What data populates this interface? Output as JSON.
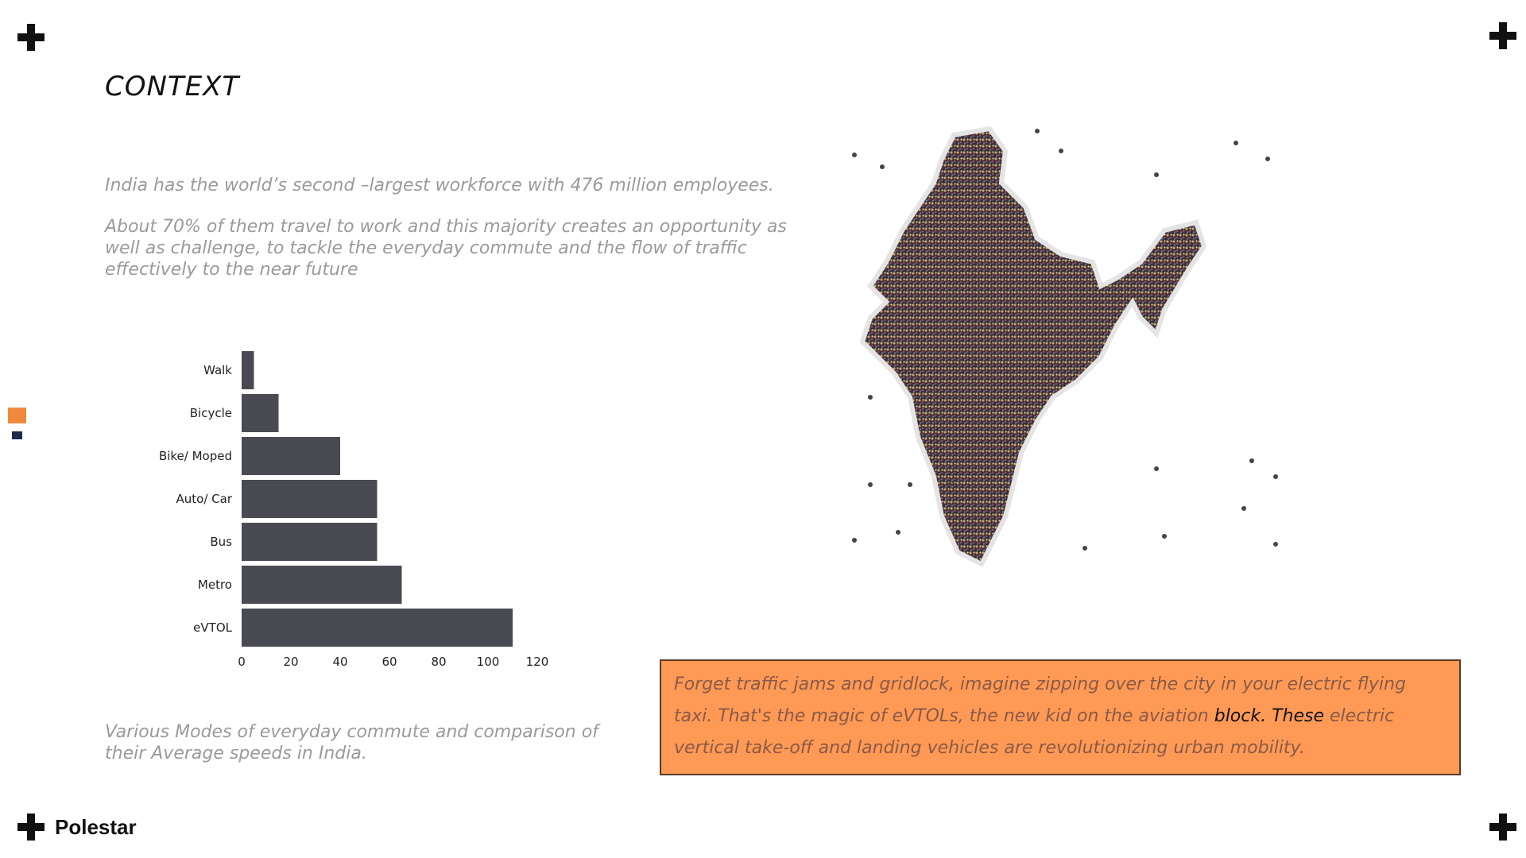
{
  "slide": {
    "title": "CONTEXT",
    "brand": "Polestar"
  },
  "intro": {
    "line1": "India has the world’s second –largest workforce with 476 million employees.",
    "line2": "About 70% of them travel to work and this majority creates an opportunity as well as challenge, to tackle the everyday commute and the flow of traffic effectively to the near future"
  },
  "chart_caption": "Various Modes of everyday commute and comparison of their Average speeds in India.",
  "callout": {
    "text_before": "Forget traffic jams and gridlock, imagine zipping over the city in your electric flying taxi. That's the magic of eVTOLs, the new kid on the aviation ",
    "text_highlight": "block. These",
    "text_after": " electric vertical take-off and landing vehicles are revolutionizing urban mobility."
  },
  "colors": {
    "bar": "#4a4b52",
    "accent_orange": "#ef8a3c",
    "callout_bg": "#ff9a56",
    "navy": "#1e2a4a"
  },
  "chart_data": {
    "type": "bar",
    "orientation": "horizontal",
    "categories": [
      "Walk",
      "Bicycle",
      "Bike/ Moped",
      "Auto/ Car",
      "Bus",
      "Metro",
      "eVTOL"
    ],
    "values": [
      5,
      15,
      40,
      55,
      55,
      65,
      110
    ],
    "xlim": [
      0,
      120
    ],
    "xticks": [
      0,
      20,
      40,
      60,
      80,
      100,
      120
    ],
    "grid": false,
    "title": "",
    "xlabel": "",
    "ylabel": ""
  },
  "image": {
    "subject": "crowd-map-icon"
  }
}
